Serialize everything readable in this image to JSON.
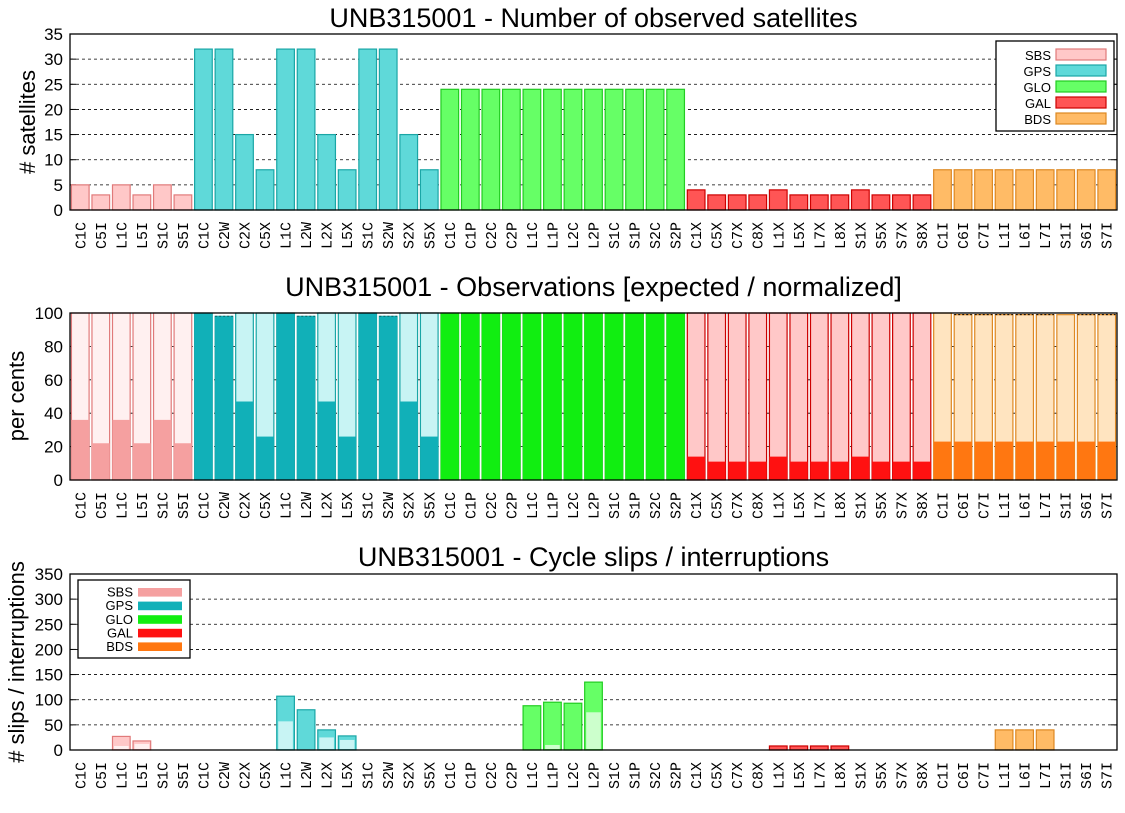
{
  "colors": {
    "SBS": {
      "fill": "#ffc8c8",
      "stroke": "#e07a7a",
      "dark": "#f5a0a0",
      "light": "#fff0f0"
    },
    "GPS": {
      "fill": "#5fd9d9",
      "stroke": "#1aa6a6",
      "dark": "#11b0b8",
      "light": "#c8f4f4"
    },
    "GLO": {
      "fill": "#66ff66",
      "stroke": "#22cc22",
      "dark": "#11ee11",
      "light": "#ccffcc"
    },
    "GAL": {
      "fill": "#ff5555",
      "stroke": "#cc0000",
      "dark": "#ff1111",
      "light": "#ffc8c8"
    },
    "BDS": {
      "fill": "#ffbb66",
      "stroke": "#dd8822",
      "dark": "#ff7711",
      "light": "#ffe4c0"
    }
  },
  "chart_data": [
    {
      "type": "bar",
      "title": "UNB315001 - Number of observed satellites",
      "ylabel": "# satellites",
      "ylim": [
        0,
        35
      ],
      "yticks": [
        0,
        5,
        10,
        15,
        20,
        25,
        30,
        35
      ],
      "grid": true,
      "legend_position": "top-right",
      "legend": [
        "SBS",
        "GPS",
        "GLO",
        "GAL",
        "BDS"
      ],
      "categories": [
        "C1C",
        "C5I",
        "L1C",
        "L5I",
        "S1C",
        "S5I",
        "C1C",
        "C2W",
        "C2X",
        "C5X",
        "L1C",
        "L2W",
        "L2X",
        "L5X",
        "S1C",
        "S2W",
        "S2X",
        "S5X",
        "C1C",
        "C1P",
        "C2C",
        "C2P",
        "L1C",
        "L1P",
        "L2C",
        "L2P",
        "S1C",
        "S1P",
        "S2C",
        "S2P",
        "C1X",
        "C5X",
        "C7X",
        "C8X",
        "L1X",
        "L5X",
        "L7X",
        "L8X",
        "S1X",
        "S5X",
        "S7X",
        "S8X",
        "C1I",
        "C6I",
        "C7I",
        "L1I",
        "L6I",
        "L7I",
        "S1I",
        "S6I",
        "S7I"
      ],
      "systems": [
        "SBS",
        "SBS",
        "SBS",
        "SBS",
        "SBS",
        "SBS",
        "GPS",
        "GPS",
        "GPS",
        "GPS",
        "GPS",
        "GPS",
        "GPS",
        "GPS",
        "GPS",
        "GPS",
        "GPS",
        "GPS",
        "GLO",
        "GLO",
        "GLO",
        "GLO",
        "GLO",
        "GLO",
        "GLO",
        "GLO",
        "GLO",
        "GLO",
        "GLO",
        "GLO",
        "GAL",
        "GAL",
        "GAL",
        "GAL",
        "GAL",
        "GAL",
        "GAL",
        "GAL",
        "GAL",
        "GAL",
        "GAL",
        "GAL",
        "BDS",
        "BDS",
        "BDS",
        "BDS",
        "BDS",
        "BDS",
        "BDS",
        "BDS",
        "BDS"
      ],
      "values": [
        5,
        3,
        5,
        3,
        5,
        3,
        32,
        32,
        15,
        8,
        32,
        32,
        15,
        8,
        32,
        32,
        15,
        8,
        24,
        24,
        24,
        24,
        24,
        24,
        24,
        24,
        24,
        24,
        24,
        24,
        4,
        3,
        3,
        3,
        4,
        3,
        3,
        3,
        4,
        3,
        3,
        3,
        8,
        8,
        8,
        8,
        8,
        8,
        8,
        8,
        8
      ]
    },
    {
      "type": "bar",
      "title": "UNB315001 - Observations [expected / normalized]",
      "ylabel": "per cents",
      "ylim": [
        0,
        100
      ],
      "yticks": [
        0,
        20,
        40,
        60,
        80,
        100
      ],
      "grid": true,
      "categories": [
        "C1C",
        "C5I",
        "L1C",
        "L5I",
        "S1C",
        "S5I",
        "C1C",
        "C2W",
        "C2X",
        "C5X",
        "L1C",
        "L2W",
        "L2X",
        "L5X",
        "S1C",
        "S2W",
        "S2X",
        "S5X",
        "C1C",
        "C1P",
        "C2C",
        "C2P",
        "L1C",
        "L1P",
        "L2C",
        "L2P",
        "S1C",
        "S1P",
        "S2C",
        "S2P",
        "C1X",
        "C5X",
        "C7X",
        "C8X",
        "L1X",
        "L5X",
        "L7X",
        "L8X",
        "S1X",
        "S5X",
        "S7X",
        "S8X",
        "C1I",
        "C6I",
        "C7I",
        "L1I",
        "L6I",
        "L7I",
        "S1I",
        "S6I",
        "S7I"
      ],
      "systems": [
        "SBS",
        "SBS",
        "SBS",
        "SBS",
        "SBS",
        "SBS",
        "GPS",
        "GPS",
        "GPS",
        "GPS",
        "GPS",
        "GPS",
        "GPS",
        "GPS",
        "GPS",
        "GPS",
        "GPS",
        "GPS",
        "GLO",
        "GLO",
        "GLO",
        "GLO",
        "GLO",
        "GLO",
        "GLO",
        "GLO",
        "GLO",
        "GLO",
        "GLO",
        "GLO",
        "GAL",
        "GAL",
        "GAL",
        "GAL",
        "GAL",
        "GAL",
        "GAL",
        "GAL",
        "GAL",
        "GAL",
        "GAL",
        "GAL",
        "BDS",
        "BDS",
        "BDS",
        "BDS",
        "BDS",
        "BDS",
        "BDS",
        "BDS",
        "BDS"
      ],
      "series": [
        {
          "values": [
            100,
            100,
            100,
            100,
            100,
            100,
            100,
            98,
            100,
            100,
            100,
            98,
            100,
            100,
            100,
            98,
            100,
            100,
            100,
            100,
            100,
            100,
            100,
            100,
            100,
            100,
            100,
            100,
            100,
            100,
            100,
            100,
            100,
            100,
            100,
            100,
            100,
            100,
            100,
            100,
            100,
            100,
            100,
            99,
            99,
            99,
            99,
            99,
            99,
            99,
            99
          ]
        },
        {
          "values": [
            100,
            100,
            100,
            100,
            100,
            100,
            100,
            98,
            100,
            100,
            100,
            98,
            100,
            100,
            100,
            98,
            100,
            100,
            100,
            100,
            100,
            100,
            100,
            100,
            100,
            100,
            100,
            100,
            100,
            100,
            100,
            100,
            100,
            100,
            100,
            100,
            100,
            100,
            100,
            100,
            100,
            100,
            100,
            99,
            99,
            99,
            99,
            99,
            100,
            99,
            99
          ]
        },
        {
          "values": [
            36,
            22,
            36,
            22,
            36,
            22,
            100,
            98,
            47,
            26,
            100,
            98,
            47,
            26,
            100,
            98,
            47,
            26,
            100,
            100,
            100,
            100,
            100,
            100,
            100,
            100,
            100,
            100,
            100,
            100,
            14,
            11,
            11,
            11,
            14,
            11,
            11,
            11,
            14,
            11,
            11,
            11,
            23,
            23,
            23,
            23,
            23,
            23,
            23,
            23,
            23
          ]
        }
      ]
    },
    {
      "type": "bar",
      "title": "UNB315001 - Cycle slips / interruptions",
      "ylabel": "# slips / interruptions",
      "ylim": [
        0,
        350
      ],
      "yticks": [
        0,
        50,
        100,
        150,
        200,
        250,
        300,
        350
      ],
      "grid": true,
      "legend_position": "top-left",
      "legend": [
        "SBS",
        "GPS",
        "GLO",
        "GAL",
        "BDS"
      ],
      "categories": [
        "C1C",
        "C5I",
        "L1C",
        "L5I",
        "S1C",
        "S5I",
        "C1C",
        "C2W",
        "C2X",
        "C5X",
        "L1C",
        "L2W",
        "L2X",
        "L5X",
        "S1C",
        "S2W",
        "S2X",
        "S5X",
        "C1C",
        "C1P",
        "C2C",
        "C2P",
        "L1C",
        "L1P",
        "L2C",
        "L2P",
        "S1C",
        "S1P",
        "S2C",
        "S2P",
        "C1X",
        "C5X",
        "C7X",
        "C8X",
        "L1X",
        "L5X",
        "L7X",
        "L8X",
        "S1X",
        "S5X",
        "S7X",
        "S8X",
        "C1I",
        "C6I",
        "C7I",
        "L1I",
        "L6I",
        "L7I",
        "S1I",
        "S6I",
        "S7I"
      ],
      "systems": [
        "SBS",
        "SBS",
        "SBS",
        "SBS",
        "SBS",
        "SBS",
        "GPS",
        "GPS",
        "GPS",
        "GPS",
        "GPS",
        "GPS",
        "GPS",
        "GPS",
        "GPS",
        "GPS",
        "GPS",
        "GPS",
        "GLO",
        "GLO",
        "GLO",
        "GLO",
        "GLO",
        "GLO",
        "GLO",
        "GLO",
        "GLO",
        "GLO",
        "GLO",
        "GLO",
        "GAL",
        "GAL",
        "GAL",
        "GAL",
        "GAL",
        "GAL",
        "GAL",
        "GAL",
        "GAL",
        "GAL",
        "GAL",
        "GAL",
        "BDS",
        "BDS",
        "BDS",
        "BDS",
        "BDS",
        "BDS",
        "BDS",
        "BDS",
        "BDS"
      ],
      "series": [
        {
          "values": [
            0,
            0,
            27,
            18,
            0,
            0,
            0,
            0,
            0,
            0,
            107,
            80,
            40,
            28,
            0,
            0,
            0,
            0,
            0,
            0,
            0,
            0,
            88,
            95,
            93,
            135,
            0,
            0,
            0,
            0,
            0,
            0,
            0,
            0,
            8,
            8,
            8,
            8,
            0,
            0,
            0,
            0,
            0,
            0,
            0,
            40,
            40,
            40,
            0,
            0,
            0
          ]
        },
        {
          "values": [
            0,
            0,
            8,
            12,
            0,
            0,
            0,
            0,
            0,
            0,
            57,
            0,
            25,
            20,
            0,
            0,
            0,
            0,
            0,
            0,
            0,
            0,
            0,
            10,
            0,
            75,
            0,
            0,
            0,
            0,
            0,
            0,
            0,
            0,
            0,
            0,
            0,
            0,
            0,
            0,
            0,
            0,
            0,
            0,
            0,
            0,
            0,
            0,
            0,
            0,
            0
          ]
        }
      ]
    }
  ]
}
